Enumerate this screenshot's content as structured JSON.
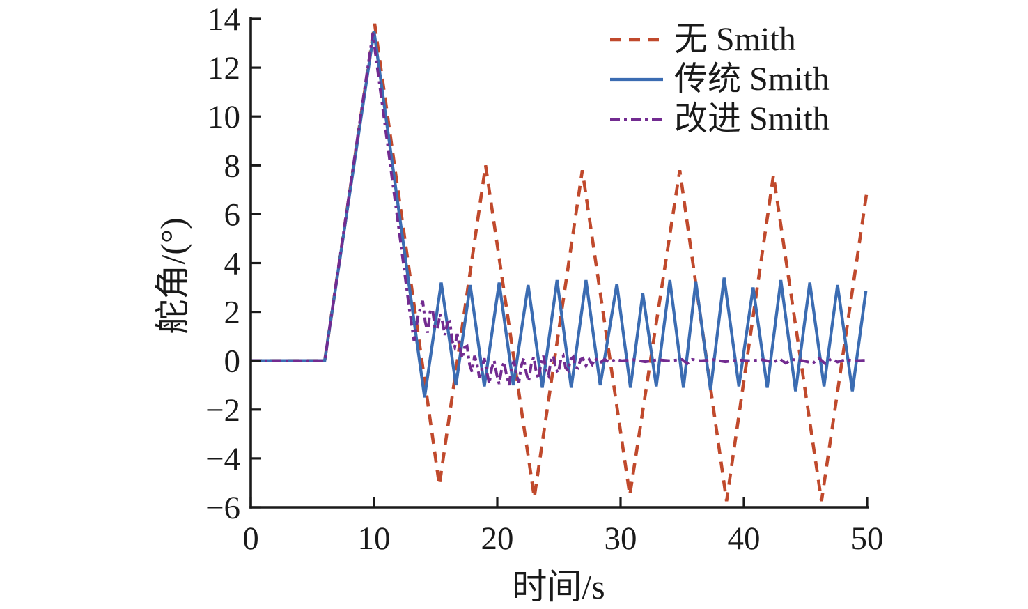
{
  "figure": {
    "background": "#ffffff",
    "axis_color": "#1a1a1a"
  },
  "chart_data": {
    "type": "line",
    "title": "",
    "xlabel": "时间/s",
    "ylabel": "舵角/(°)",
    "xlim": [
      0,
      50
    ],
    "ylim": [
      -6,
      14
    ],
    "xticks": [
      0,
      10,
      20,
      30,
      40,
      50
    ],
    "yticks": [
      -6,
      -4,
      -2,
      0,
      2,
      4,
      6,
      8,
      10,
      12,
      14
    ],
    "grid": false,
    "legend_position": "top-right",
    "legend_box": false,
    "series": [
      {
        "name": "无 Smith",
        "color": "#c0492c",
        "linestyle": "dashed",
        "points": [
          [
            0,
            0
          ],
          [
            6,
            0
          ],
          [
            10.05,
            13.8
          ],
          [
            15.3,
            -5.1
          ],
          [
            19.05,
            8.0
          ],
          [
            23.0,
            -5.6
          ],
          [
            26.9,
            7.8
          ],
          [
            30.75,
            -5.5
          ],
          [
            34.8,
            7.8
          ],
          [
            38.6,
            -5.75
          ],
          [
            42.4,
            7.6
          ],
          [
            46.3,
            -5.75
          ],
          [
            50,
            7.0
          ]
        ]
      },
      {
        "name": "传统 Smith",
        "color": "#3b6cb2",
        "linestyle": "solid",
        "points": [
          [
            0,
            0
          ],
          [
            6,
            0
          ],
          [
            10.0,
            13.5
          ],
          [
            14.1,
            -1.5
          ],
          [
            15.45,
            3.2
          ],
          [
            16.65,
            -1.0
          ],
          [
            17.8,
            3.1
          ],
          [
            18.95,
            -1.05
          ],
          [
            20.15,
            3.2
          ],
          [
            21.3,
            -1.0
          ],
          [
            22.5,
            3.1
          ],
          [
            23.65,
            -1.1
          ],
          [
            24.85,
            3.3
          ],
          [
            26.0,
            -1.1
          ],
          [
            27.2,
            3.3
          ],
          [
            28.35,
            -1.0
          ],
          [
            29.7,
            3.15
          ],
          [
            30.8,
            -1.1
          ],
          [
            31.8,
            2.75
          ],
          [
            32.9,
            -1.05
          ],
          [
            34.0,
            3.3
          ],
          [
            35.1,
            -1.1
          ],
          [
            36.1,
            3.25
          ],
          [
            37.3,
            -1.2
          ],
          [
            38.4,
            3.4
          ],
          [
            39.6,
            -1.05
          ],
          [
            40.75,
            3.0
          ],
          [
            41.9,
            -1.1
          ],
          [
            43.0,
            3.3
          ],
          [
            44.2,
            -1.25
          ],
          [
            45.35,
            3.2
          ],
          [
            46.5,
            -1.05
          ],
          [
            47.6,
            3.1
          ],
          [
            48.8,
            -1.25
          ],
          [
            49.9,
            2.85
          ]
        ]
      },
      {
        "name": "改进 Smith",
        "color": "#722b90",
        "linestyle": "dashdot",
        "points": [
          [
            0,
            0
          ],
          [
            6,
            0
          ],
          [
            9.9,
            13.4
          ],
          [
            12.2,
            4.7
          ],
          [
            12.9,
            2.0
          ],
          [
            13.25,
            0.8
          ],
          [
            13.6,
            1.9
          ],
          [
            13.95,
            2.45
          ],
          [
            14.15,
            1.6
          ],
          [
            14.35,
            1.15
          ],
          [
            14.55,
            2.0
          ],
          [
            14.75,
            2.1
          ],
          [
            14.95,
            1.3
          ],
          [
            15.15,
            1.3
          ],
          [
            15.35,
            1.9
          ],
          [
            15.55,
            1.6
          ],
          [
            15.75,
            1.05
          ],
          [
            15.95,
            1.55
          ],
          [
            16.15,
            1.6
          ],
          [
            16.35,
            0.8
          ],
          [
            16.55,
            0.55
          ],
          [
            16.75,
            1.1
          ],
          [
            16.95,
            0.55
          ],
          [
            17.15,
            0.1
          ],
          [
            17.35,
            0.55
          ],
          [
            17.55,
            0.6
          ],
          [
            17.75,
            -0.15
          ],
          [
            17.95,
            -0.45
          ],
          [
            18.15,
            0.2
          ],
          [
            18.35,
            -0.1
          ],
          [
            18.55,
            -0.7
          ],
          [
            18.75,
            -0.35
          ],
          [
            18.95,
            0.1
          ],
          [
            19.15,
            -0.45
          ],
          [
            19.35,
            -0.95
          ],
          [
            19.55,
            -0.3
          ],
          [
            19.75,
            0.0
          ],
          [
            19.95,
            -0.55
          ],
          [
            20.15,
            -0.95
          ],
          [
            20.35,
            -0.35
          ],
          [
            20.55,
            -0.05
          ],
          [
            20.75,
            -0.6
          ],
          [
            20.95,
            -1.0
          ],
          [
            21.15,
            -0.3
          ],
          [
            21.35,
            0.0
          ],
          [
            21.55,
            -0.55
          ],
          [
            21.75,
            -0.9
          ],
          [
            21.95,
            -0.2
          ],
          [
            22.15,
            0.1
          ],
          [
            22.35,
            -0.5
          ],
          [
            22.55,
            -0.85
          ],
          [
            22.75,
            -0.15
          ],
          [
            22.95,
            0.15
          ],
          [
            23.15,
            -0.45
          ],
          [
            23.35,
            -0.75
          ],
          [
            23.55,
            -0.1
          ],
          [
            23.75,
            0.2
          ],
          [
            23.95,
            -0.4
          ],
          [
            24.15,
            -0.6
          ],
          [
            24.35,
            0.0
          ],
          [
            24.55,
            0.2
          ],
          [
            24.75,
            -0.35
          ],
          [
            24.95,
            -0.5
          ],
          [
            25.15,
            0.05
          ],
          [
            25.35,
            0.2
          ],
          [
            25.55,
            -0.3
          ],
          [
            25.75,
            -0.4
          ],
          [
            25.95,
            0.05
          ],
          [
            26.15,
            0.15
          ],
          [
            26.35,
            -0.25
          ],
          [
            26.55,
            -0.3
          ],
          [
            26.75,
            0.05
          ],
          [
            26.95,
            0.1
          ],
          [
            27.2,
            -0.2
          ],
          [
            27.45,
            0.05
          ],
          [
            27.7,
            -0.15
          ],
          [
            27.95,
            0.1
          ],
          [
            28.3,
            -0.1
          ],
          [
            28.7,
            0.05
          ],
          [
            29.1,
            -0.05
          ],
          [
            29.6,
            0.05
          ],
          [
            30.1,
            0.0
          ],
          [
            31,
            0.04
          ],
          [
            32,
            -0.04
          ],
          [
            33,
            0.04
          ],
          [
            34,
            0.0
          ],
          [
            35,
            0.05
          ],
          [
            35.4,
            -0.12
          ],
          [
            35.8,
            0.05
          ],
          [
            36.5,
            0.0
          ],
          [
            37.5,
            0.04
          ],
          [
            38.5,
            -0.04
          ],
          [
            39.5,
            0.03
          ],
          [
            40.5,
            0.0
          ],
          [
            41.5,
            0.04
          ],
          [
            42.4,
            -0.06
          ],
          [
            42.9,
            0.08
          ],
          [
            43.4,
            -0.1
          ],
          [
            43.9,
            0.05
          ],
          [
            44.8,
            0.0
          ],
          [
            45.6,
            -0.1
          ],
          [
            46.1,
            0.1
          ],
          [
            46.6,
            -0.12
          ],
          [
            47.1,
            0.08
          ],
          [
            47.6,
            -0.05
          ],
          [
            48.2,
            0.04
          ],
          [
            49,
            0.0
          ],
          [
            50,
            0.02
          ]
        ]
      }
    ]
  }
}
